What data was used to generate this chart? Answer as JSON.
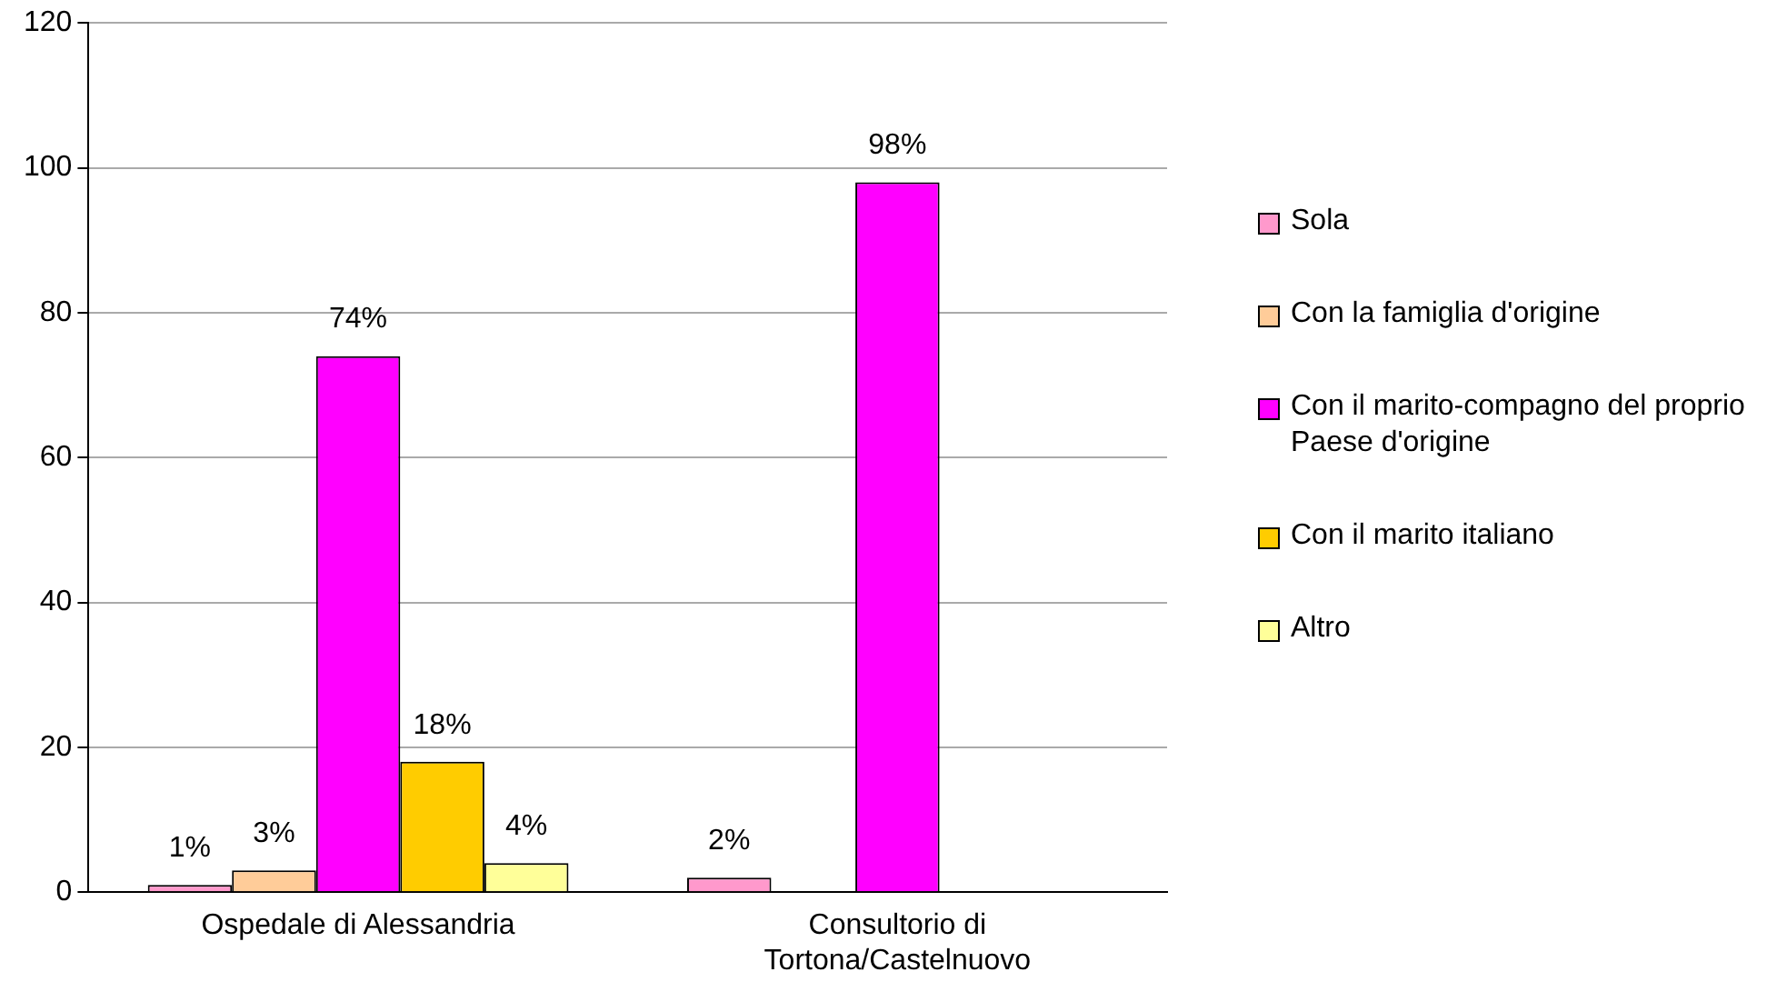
{
  "chart_data": {
    "type": "bar",
    "categories": [
      "Ospedale di Alessandria",
      "Consultorio di Tortona/Castelnuovo"
    ],
    "series": [
      {
        "name": "Sola",
        "color": "#ff99cc",
        "values": [
          1,
          2
        ],
        "value_labels": [
          "1%",
          "2%"
        ]
      },
      {
        "name": "Con la famiglia d'origine",
        "color": "#ffcc99",
        "values": [
          3,
          null
        ],
        "value_labels": [
          "3%",
          null
        ]
      },
      {
        "name": "Con il marito-compagno del proprio Paese d'origine",
        "color": "#ff00ff",
        "values": [
          74,
          98
        ],
        "value_labels": [
          "74%",
          "98%"
        ]
      },
      {
        "name": "Con il marito italiano",
        "color": "#ffcc00",
        "values": [
          18,
          null
        ],
        "value_labels": [
          "18%",
          null
        ]
      },
      {
        "name": "Altro",
        "color": "#ffff99",
        "values": [
          4,
          null
        ],
        "value_labels": [
          "4%",
          null
        ]
      }
    ],
    "ylim": [
      0,
      120
    ],
    "yticks": [
      0,
      20,
      40,
      60,
      80,
      100,
      120
    ],
    "grid": "y",
    "legend": "right"
  }
}
